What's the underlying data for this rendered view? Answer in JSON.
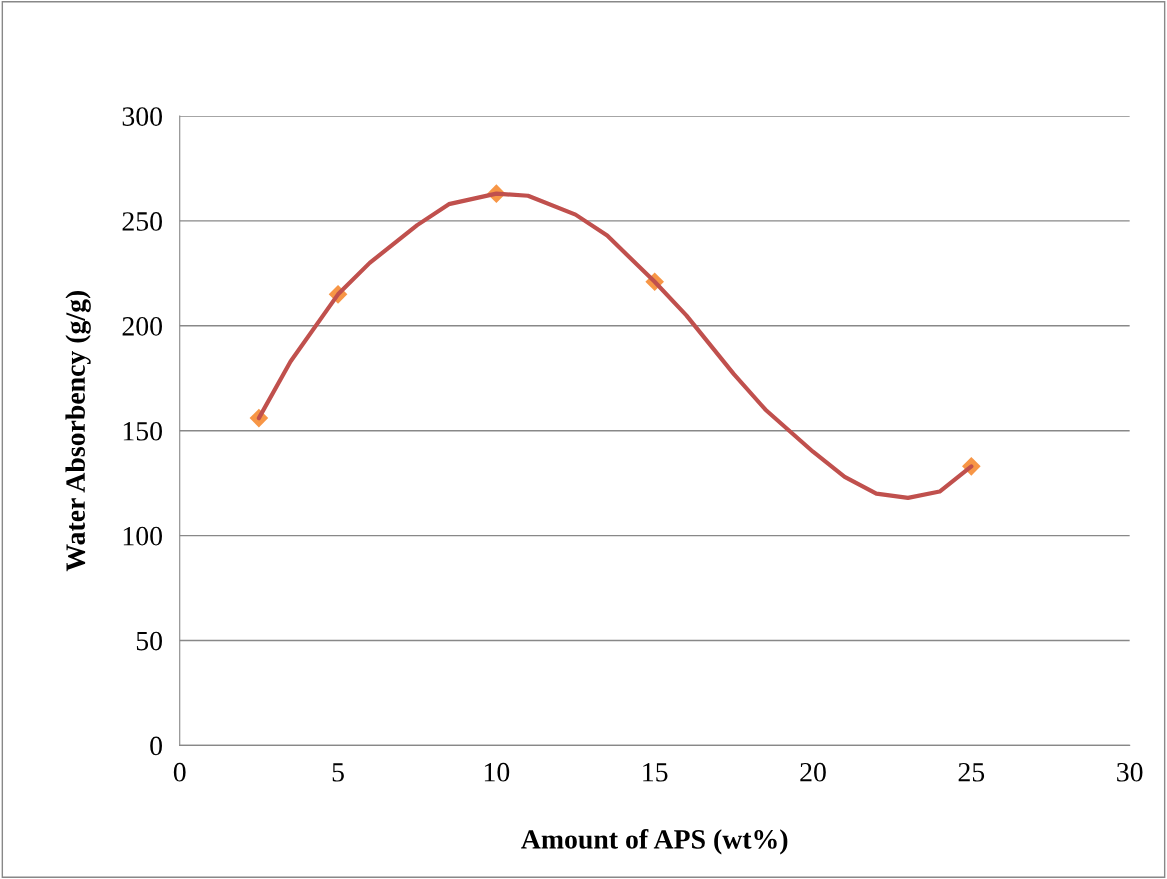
{
  "chart_data": {
    "type": "scatter",
    "xlabel": "Amount of APS (wt%)",
    "ylabel": "Water Absorbency (g/g)",
    "xlim": [
      0,
      30
    ],
    "xticks": [
      0,
      5,
      10,
      15,
      20,
      25,
      30
    ],
    "ylim": [
      0,
      300
    ],
    "yticks": [
      0,
      50,
      100,
      150,
      200,
      250,
      300
    ],
    "grid": "y",
    "series": [
      {
        "type": "line",
        "color": "#c0504d",
        "marker": "none",
        "line_style": "solid",
        "x": [
          2.5,
          3.5,
          5,
          6,
          7.5,
          8.5,
          10,
          11,
          12.5,
          13.5,
          15,
          16,
          17.5,
          18.5,
          20,
          21,
          22,
          23,
          24,
          25
        ],
        "values": [
          156,
          183,
          215,
          230,
          248,
          258,
          263,
          262,
          253,
          243,
          221,
          205,
          177,
          160,
          140,
          128,
          120,
          118,
          121,
          133
        ]
      },
      {
        "color": "#f79646",
        "marker": "diamond",
        "x": [
          2.5,
          5,
          10,
          15,
          25
        ],
        "values": [
          156,
          215,
          263,
          221,
          133
        ]
      }
    ]
  }
}
